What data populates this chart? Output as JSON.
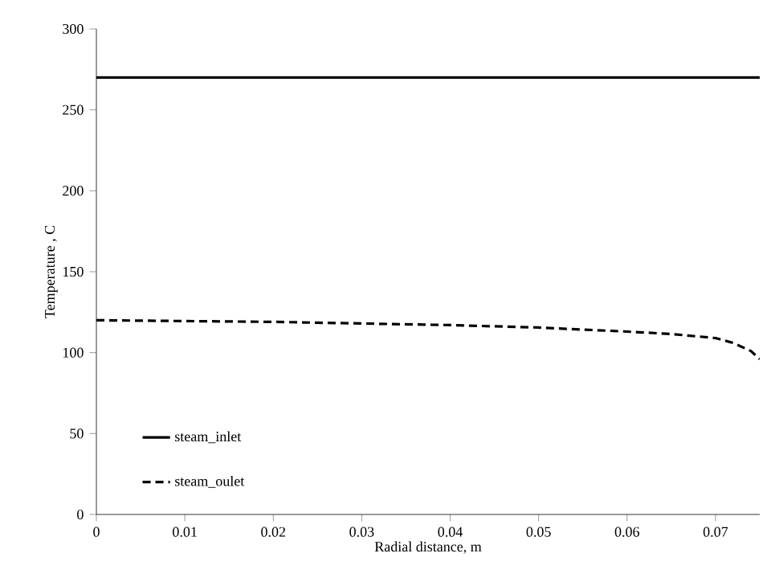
{
  "chart_data": {
    "type": "line",
    "xlabel": "Radial distance, m",
    "ylabel": "Temperature , C",
    "xlim": [
      0,
      0.075
    ],
    "xticks": [
      0,
      0.01,
      0.02,
      0.03,
      0.04,
      0.05,
      0.06,
      0.07
    ],
    "ylim": [
      0,
      300
    ],
    "yticks": [
      0,
      50,
      100,
      150,
      200,
      250,
      300
    ],
    "grid": false,
    "legend": "bottom left",
    "series": [
      {
        "name": "steam_inlet",
        "color": "#000000",
        "line_style": "solid",
        "x": [
          0,
          0.075
        ],
        "values": [
          270,
          270
        ]
      },
      {
        "name": "steam_oulet",
        "color": "#000000",
        "line_style": "dashed",
        "x": [
          0,
          0.01,
          0.02,
          0.03,
          0.04,
          0.05,
          0.06,
          0.065,
          0.07,
          0.072,
          0.074,
          0.075
        ],
        "values": [
          120,
          119.5,
          119,
          118,
          117,
          115.5,
          113,
          111.5,
          109,
          106,
          101,
          96
        ]
      }
    ]
  }
}
